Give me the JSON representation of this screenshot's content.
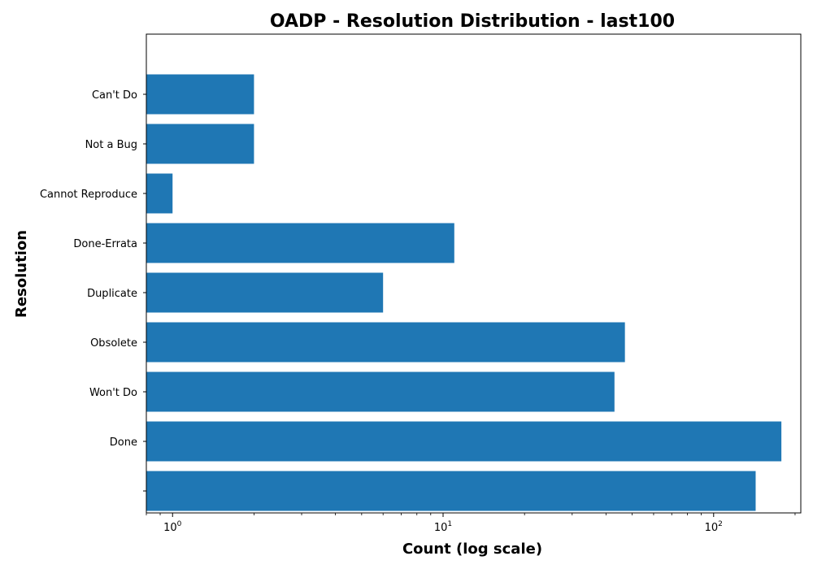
{
  "chart_data": {
    "type": "bar",
    "orientation": "horizontal",
    "title": "OADP - Resolution Distribution - last100",
    "xlabel": "Count (log scale)",
    "ylabel": "Resolution",
    "x_scale": "log",
    "xlim": [
      0.8,
      210
    ],
    "x_ticks": [
      {
        "value": 1,
        "base": "10",
        "exp": "0"
      },
      {
        "value": 10,
        "base": "10",
        "exp": "1"
      },
      {
        "value": 100,
        "base": "10",
        "exp": "2"
      }
    ],
    "categories": [
      "",
      "Done",
      "Won't Do",
      "Obsolete",
      "Duplicate",
      "Done-Errata",
      "Cannot Reproduce",
      "Not a Bug",
      "Can't Do"
    ],
    "values": [
      143,
      178,
      43,
      47,
      6,
      11,
      1,
      2,
      2
    ],
    "bar_color": "#1f77b4",
    "grid": false,
    "legend": "none"
  }
}
